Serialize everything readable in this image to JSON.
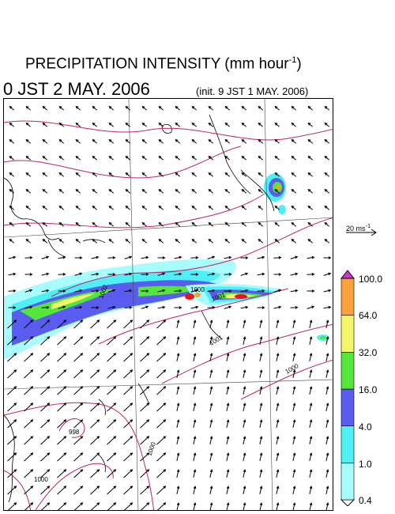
{
  "header": {
    "title": "PRECIPITATION INTENSITY (mm hour",
    "title_sup": "-1",
    "title_close": ")",
    "valid_time": "0 JST 2 MAY. 2006",
    "init_time": "(init. 9 JST 1 MAY. 2006)"
  },
  "reference_vector": {
    "label": "20 ms",
    "label_sup": "-1"
  },
  "legend": {
    "levels": [
      "0.4",
      "1.0",
      "4.0",
      "16.0",
      "32.0",
      "64.0",
      "100.0"
    ],
    "colors": [
      "#a8fcfc",
      "#4ff0f5",
      "#5a5cf0",
      "#54e63c",
      "#f6f66a",
      "#f9a23c",
      "#e8141a",
      "#c839d2"
    ]
  },
  "map": {
    "isobar_color": "#c0206e",
    "coast_color": "#000000",
    "grid_color": "#444444",
    "isobar_labels": [
      "1000",
      "1002",
      "1001",
      "1000",
      "998",
      "1000",
      "1000",
      "1001"
    ]
  }
}
